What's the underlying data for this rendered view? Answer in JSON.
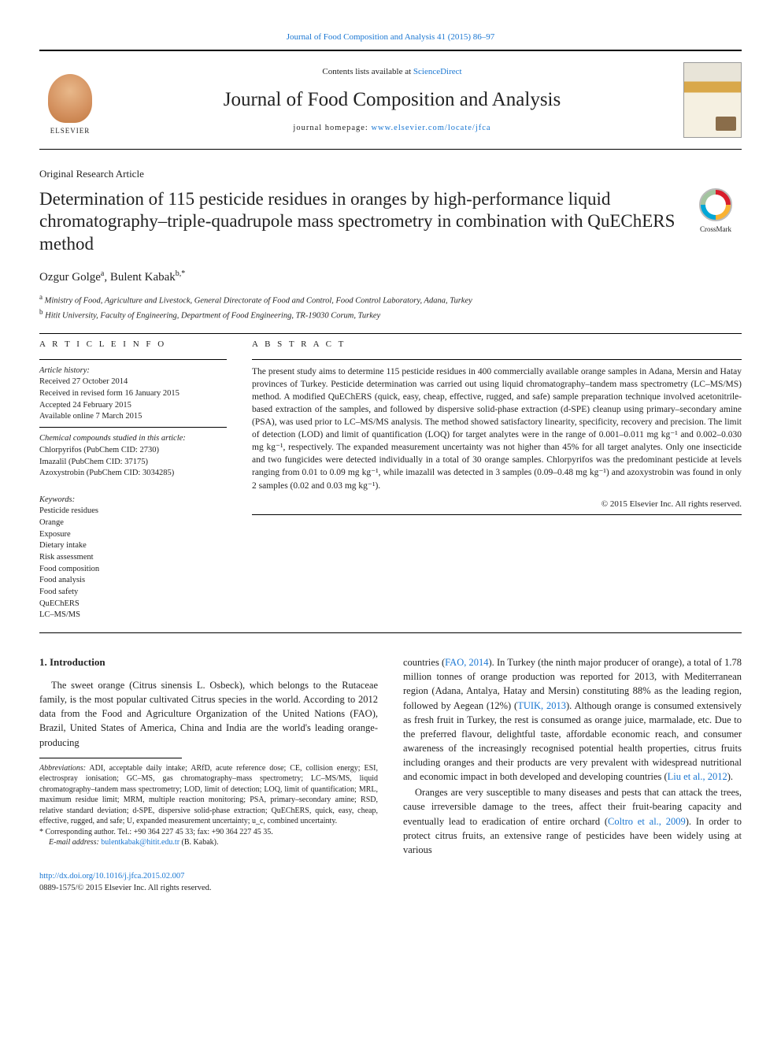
{
  "top_citation": "Journal of Food Composition and Analysis 41 (2015) 86–97",
  "masthead": {
    "contents_prefix": "Contents lists available at ",
    "contents_link": "ScienceDirect",
    "journal_name": "Journal of Food Composition and Analysis",
    "homepage_prefix": "journal homepage: ",
    "homepage_link": "www.elsevier.com/locate/jfca",
    "publisher_label": "ELSEVIER"
  },
  "article_type": "Original Research Article",
  "title": "Determination of 115 pesticide residues in oranges by high-performance liquid chromatography–triple-quadrupole mass spectrometry in combination with QuEChERS method",
  "crossmark_label": "CrossMark",
  "authors_html": "Ozgur Golge<sup>a</sup>, Bulent Kabak<sup>b,*</sup>",
  "affil_a": "Ministry of Food, Agriculture and Livestock, General Directorate of Food and Control, Food Control Laboratory, Adana, Turkey",
  "affil_b": "Hitit University, Faculty of Engineering, Department of Food Engineering, TR-19030 Corum, Turkey",
  "info": {
    "heading": "A R T I C L E   I N F O",
    "history_label": "Article history:",
    "history": [
      "Received 27 October 2014",
      "Received in revised form 16 January 2015",
      "Accepted 24 February 2015",
      "Available online 7 March 2015"
    ],
    "compounds_label": "Chemical compounds studied in this article:",
    "compounds": [
      "Chlorpyrifos (PubChem CID: 2730)",
      "Imazalil (PubChem CID: 37175)",
      "Azoxystrobin (PubChem CID: 3034285)"
    ],
    "keywords_label": "Keywords:",
    "keywords": [
      "Pesticide residues",
      "Orange",
      "Exposure",
      "Dietary intake",
      "Risk assessment",
      "Food composition",
      "Food analysis",
      "Food safety",
      "QuEChERS",
      "LC–MS/MS"
    ]
  },
  "abstract": {
    "heading": "A B S T R A C T",
    "text": "The present study aims to determine 115 pesticide residues in 400 commercially available orange samples in Adana, Mersin and Hatay provinces of Turkey. Pesticide determination was carried out using liquid chromatography–tandem mass spectrometry (LC–MS/MS) method. A modified QuEChERS (quick, easy, cheap, effective, rugged, and safe) sample preparation technique involved acetonitrile-based extraction of the samples, and followed by dispersive solid-phase extraction (d-SPE) cleanup using primary–secondary amine (PSA), was used prior to LC–MS/MS analysis. The method showed satisfactory linearity, specificity, recovery and precision. The limit of detection (LOD) and limit of quantification (LOQ) for target analytes were in the range of 0.001–0.011 mg kg⁻¹ and 0.002–0.030 mg kg⁻¹, respectively. The expanded measurement uncertainty was not higher than 45% for all target analytes. Only one insecticide and two fungicides were detected individually in a total of 30 orange samples. Chlorpyrifos was the predominant pesticide at levels ranging from 0.01 to 0.09 mg kg⁻¹, while imazalil was detected in 3 samples (0.09–0.48 mg kg⁻¹) and azoxystrobin was found in only 2 samples (0.02 and 0.03 mg kg⁻¹).",
    "copyright": "© 2015 Elsevier Inc. All rights reserved."
  },
  "intro_heading": "1. Introduction",
  "para1": "The sweet orange (Citrus sinensis L. Osbeck), which belongs to the Rutaceae family, is the most popular cultivated Citrus species in the world. According to 2012 data from the Food and Agriculture Organization of the United Nations (FAO), Brazil, United States of America, China and India are the world's leading orange-producing",
  "para2_pre": "countries (",
  "para2_link1": "FAO, 2014",
  "para2_mid1": "). In Turkey (the ninth major producer of orange), a total of 1.78 million tonnes of orange production was reported for 2013, with Mediterranean region (Adana, Antalya, Hatay and Mersin) constituting 88% as the leading region, followed by Aegean (12%) (",
  "para2_link2": "TUIK, 2013",
  "para2_mid2": "). Although orange is consumed extensively as fresh fruit in Turkey, the rest is consumed as orange juice, marmalade, etc. Due to the preferred flavour, delightful taste, affordable economic reach, and consumer awareness of the increasingly recognised potential health properties, citrus fruits including oranges and their products are very prevalent with widespread nutritional and economic impact in both developed and developing countries (",
  "para2_link3": "Liu et al., 2012",
  "para2_end": ").",
  "para3_pre": "Oranges are very susceptible to many diseases and pests that can attack the trees, cause irreversible damage to the trees, affect their fruit-bearing capacity and eventually lead to eradication of entire orchard (",
  "para3_link": "Coltro et al., 2009",
  "para3_end": "). In order to protect citrus fruits, an extensive range of pesticides have been widely using at various",
  "abbrev_label": "Abbreviations:",
  "abbrev_text": " ADI, acceptable daily intake; ARfD, acute reference dose; CE, collision energy; ESI, electrospray ionisation; GC–MS, gas chromatography–mass spectrometry; LC–MS/MS, liquid chromatography–tandem mass spectrometry; LOD, limit of detection; LOQ, limit of quantification; MRL, maximum residue limit; MRM, multiple reaction monitoring; PSA, primary–secondary amine; RSD, relative standard deviation; d-SPE, dispersive solid-phase extraction; QuEChERS, quick, easy, cheap, effective, rugged, and safe; U, expanded measurement uncertainty; u_c, combined uncertainty.",
  "corr_label": "* Corresponding author. Tel.: +90 364 227 45 33; fax: +90 364 227 45 35.",
  "email_label": "E-mail address:",
  "email": "bulentkabak@hitit.edu.tr",
  "email_suffix": " (B. Kabak).",
  "doi": "http://dx.doi.org/10.1016/j.jfca.2015.02.007",
  "issn_line": "0889-1575/© 2015 Elsevier Inc. All rights reserved."
}
